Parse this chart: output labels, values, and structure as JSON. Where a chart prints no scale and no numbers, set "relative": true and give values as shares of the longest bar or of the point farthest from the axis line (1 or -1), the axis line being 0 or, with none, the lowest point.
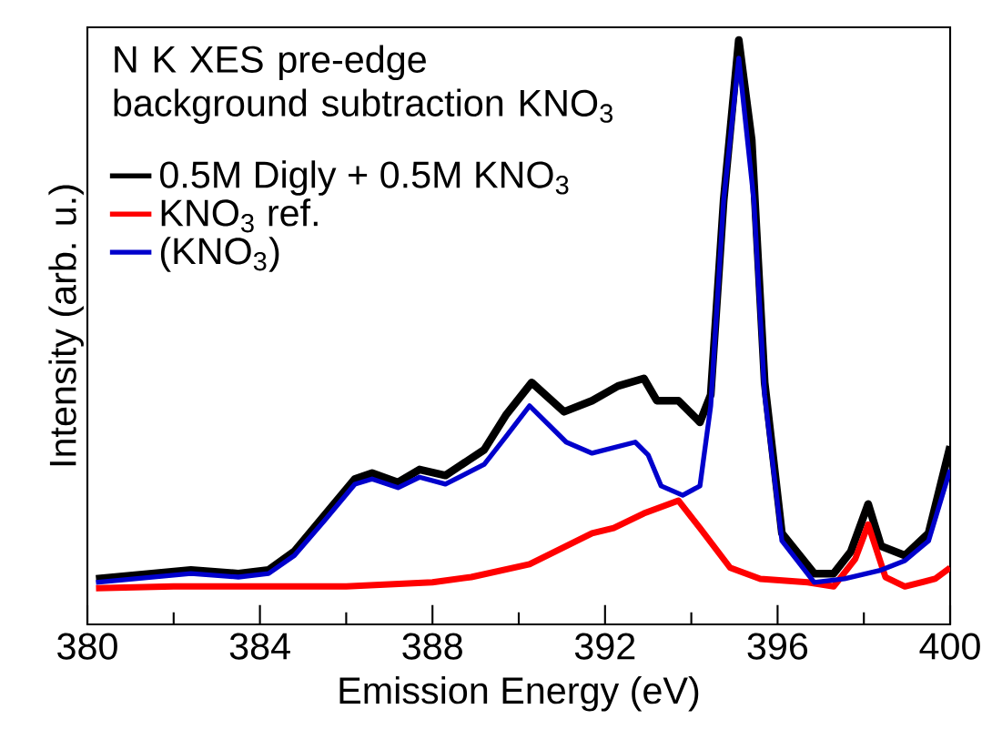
{
  "chart_data": {
    "type": "line",
    "xlabel": "Emission Energy (eV)",
    "ylabel": "Intensity (arb. u.)",
    "relative": true,
    "legend_title": "N K XES pre-edge background subtraction KNO$_{3}$",
    "legend": "top left",
    "xlim": [
      380,
      400
    ],
    "xticks": [
      380,
      384,
      388,
      392,
      396,
      400
    ],
    "series": [
      {
        "name": "0.5M Digly + 0.5M KNO$_{3}$",
        "color": "#000000",
        "x": [
          380.2,
          382.4,
          383.5,
          384.2,
          384.8,
          385.5,
          386.2,
          386.6,
          387.2,
          387.7,
          388.3,
          389.2,
          389.7,
          390.3,
          391.05,
          391.7,
          392.3,
          392.9,
          393.2,
          393.7,
          394.2,
          394.45,
          394.75,
          395.1,
          395.4,
          395.7,
          396.1,
          396.85,
          397.3,
          397.7,
          398.1,
          398.4,
          398.95,
          399.5,
          400
        ],
        "values": [
          0.078,
          0.093,
          0.087,
          0.093,
          0.125,
          0.187,
          0.249,
          0.259,
          0.243,
          0.265,
          0.255,
          0.299,
          0.358,
          0.414,
          0.364,
          0.383,
          0.408,
          0.421,
          0.383,
          0.383,
          0.346,
          0.393,
          0.726,
          1.0,
          0.829,
          0.414,
          0.156,
          0.087,
          0.087,
          0.125,
          0.206,
          0.134,
          0.118,
          0.156,
          0.305
        ]
      },
      {
        "name": "KNO$_{3}$ ref.",
        "color": "#ff0000",
        "x": [
          380.2,
          382,
          384,
          386,
          388,
          388.9,
          390.25,
          391.7,
          392.2,
          392.9,
          393.7,
          394.2,
          394.9,
          395.6,
          396.7,
          397.3,
          397.8,
          398.1,
          398.5,
          398.95,
          399.65,
          400
        ],
        "values": [
          0.062,
          0.065,
          0.065,
          0.065,
          0.072,
          0.081,
          0.103,
          0.156,
          0.165,
          0.19,
          0.212,
          0.165,
          0.097,
          0.078,
          0.072,
          0.065,
          0.112,
          0.171,
          0.081,
          0.065,
          0.078,
          0.097
        ]
      },
      {
        "name": "(KNO$_{3}$)",
        "color": "#0000cc",
        "x": [
          380.2,
          382.4,
          383.5,
          384.2,
          384.8,
          385.5,
          386.2,
          386.6,
          387.2,
          387.7,
          388.3,
          389.2,
          389.7,
          390.25,
          391.1,
          391.7,
          392.7,
          393.0,
          393.3,
          393.8,
          394.2,
          394.45,
          394.75,
          395.1,
          395.45,
          395.7,
          396.1,
          396.85,
          397.55,
          398.4,
          398.95,
          399.5,
          400
        ],
        "values": [
          0.072,
          0.087,
          0.081,
          0.087,
          0.118,
          0.178,
          0.24,
          0.249,
          0.234,
          0.252,
          0.24,
          0.274,
          0.321,
          0.374,
          0.312,
          0.293,
          0.312,
          0.29,
          0.237,
          0.221,
          0.237,
          0.374,
          0.726,
          0.969,
          0.726,
          0.393,
          0.143,
          0.072,
          0.078,
          0.093,
          0.109,
          0.143,
          0.265
        ]
      }
    ]
  }
}
